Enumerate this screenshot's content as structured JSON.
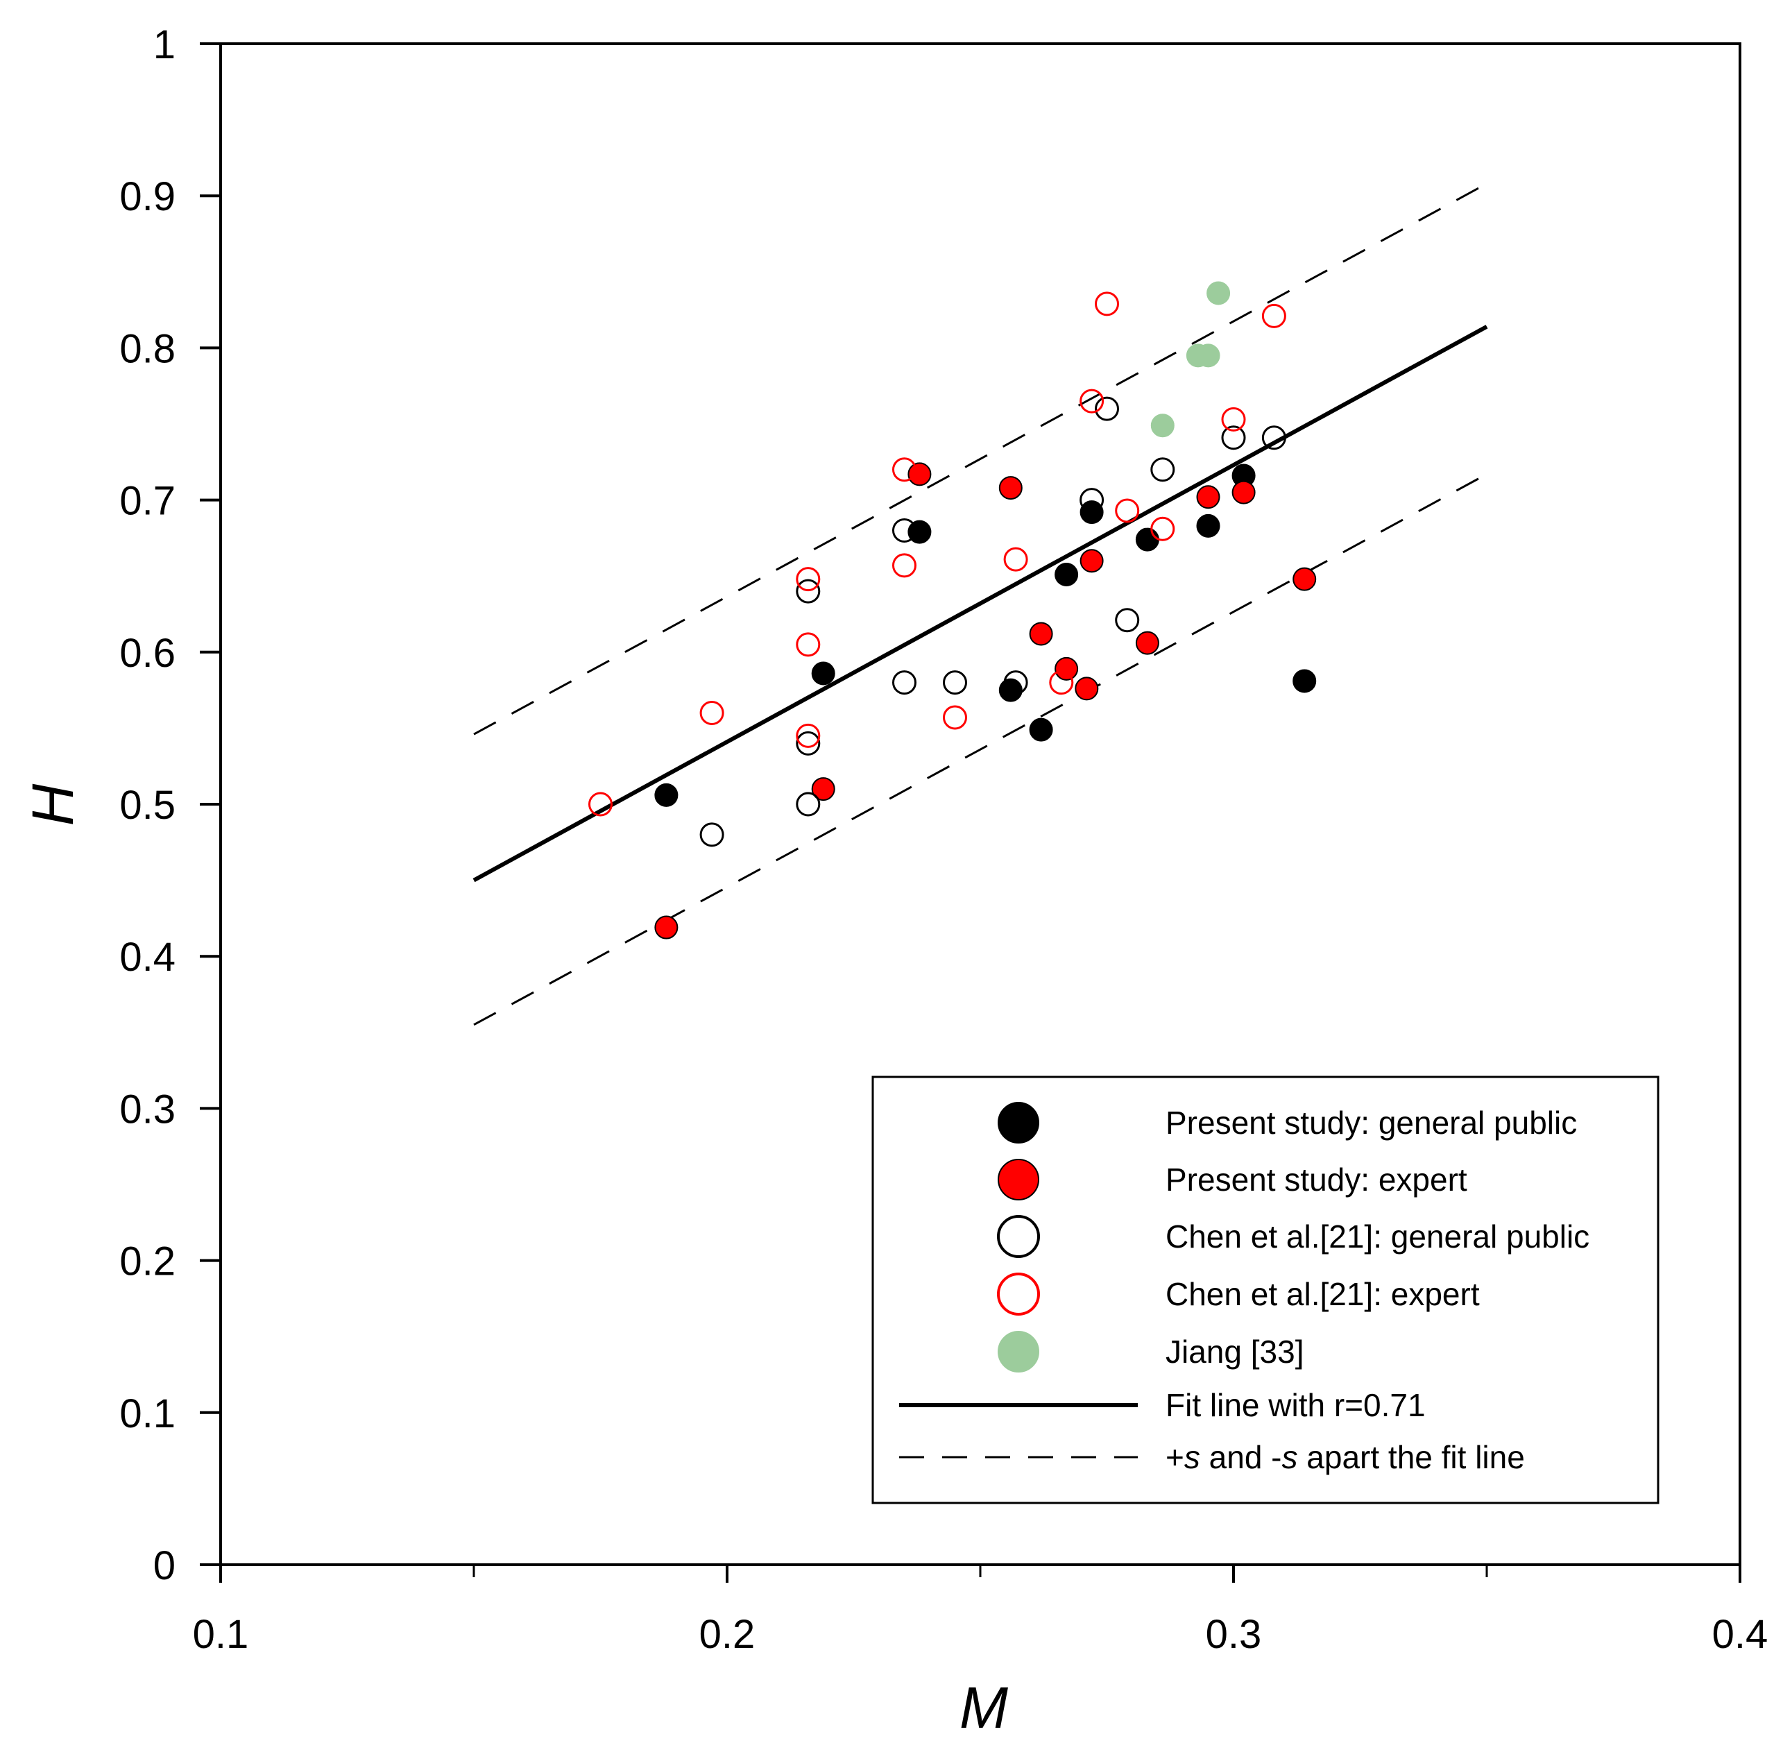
{
  "chart_data": {
    "type": "scatter",
    "title": "",
    "xlabel": "M",
    "ylabel": "H",
    "xlim": [
      0.1,
      0.4
    ],
    "ylim": [
      0,
      1
    ],
    "x_ticks": [
      0.1,
      0.2,
      0.3,
      0.4
    ],
    "x_tick_labels": [
      "0.1",
      "0.2",
      "0.3",
      "0.4"
    ],
    "x_minor_ticks": [
      0.15,
      0.25,
      0.35
    ],
    "y_ticks": [
      0,
      0.1,
      0.2,
      0.3,
      0.4,
      0.5,
      0.6,
      0.7,
      0.8,
      0.9,
      1
    ],
    "y_tick_labels": [
      "0",
      "0.1",
      "0.2",
      "0.3",
      "0.4",
      "0.5",
      "0.6",
      "0.7",
      "0.8",
      "0.9",
      "1"
    ],
    "grid": false,
    "legend_position": "bottom-right",
    "series": [
      {
        "name": "Present study: general public",
        "style": "filled",
        "fill": "#000000",
        "stroke": "#000000",
        "points": [
          [
            0.188,
            0.506
          ],
          [
            0.219,
            0.586
          ],
          [
            0.238,
            0.679
          ],
          [
            0.256,
            0.575
          ],
          [
            0.262,
            0.549
          ],
          [
            0.267,
            0.651
          ],
          [
            0.272,
            0.692
          ],
          [
            0.283,
            0.674
          ],
          [
            0.295,
            0.683
          ],
          [
            0.302,
            0.716
          ],
          [
            0.314,
            0.581
          ]
        ]
      },
      {
        "name": "Present study: expert",
        "style": "filled",
        "fill": "#ff0000",
        "stroke": "#000000",
        "points": [
          [
            0.188,
            0.419
          ],
          [
            0.219,
            0.51
          ],
          [
            0.238,
            0.717
          ],
          [
            0.256,
            0.708
          ],
          [
            0.262,
            0.612
          ],
          [
            0.267,
            0.589
          ],
          [
            0.271,
            0.576
          ],
          [
            0.272,
            0.66
          ],
          [
            0.283,
            0.606
          ],
          [
            0.295,
            0.702
          ],
          [
            0.302,
            0.705
          ],
          [
            0.314,
            0.648
          ]
        ]
      },
      {
        "name": "Chen et al.[21]: general public",
        "style": "hollow",
        "fill": "none",
        "stroke": "#000000",
        "points": [
          [
            0.197,
            0.48
          ],
          [
            0.216,
            0.5
          ],
          [
            0.216,
            0.54
          ],
          [
            0.216,
            0.64
          ],
          [
            0.235,
            0.58
          ],
          [
            0.235,
            0.68
          ],
          [
            0.245,
            0.58
          ],
          [
            0.257,
            0.58
          ],
          [
            0.272,
            0.7
          ],
          [
            0.275,
            0.76
          ],
          [
            0.279,
            0.621
          ],
          [
            0.286,
            0.72
          ],
          [
            0.3,
            0.741
          ],
          [
            0.308,
            0.741
          ]
        ]
      },
      {
        "name": "Chen et al.[21]: expert",
        "style": "hollow",
        "fill": "none",
        "stroke": "#ff0000",
        "points": [
          [
            0.175,
            0.5
          ],
          [
            0.197,
            0.56
          ],
          [
            0.216,
            0.545
          ],
          [
            0.216,
            0.605
          ],
          [
            0.216,
            0.648
          ],
          [
            0.235,
            0.657
          ],
          [
            0.235,
            0.72
          ],
          [
            0.245,
            0.557
          ],
          [
            0.257,
            0.661
          ],
          [
            0.266,
            0.58
          ],
          [
            0.272,
            0.765
          ],
          [
            0.275,
            0.829
          ],
          [
            0.279,
            0.693
          ],
          [
            0.286,
            0.681
          ],
          [
            0.3,
            0.753
          ],
          [
            0.308,
            0.821
          ]
        ]
      },
      {
        "name": "Jiang [33]",
        "style": "filled",
        "fill": "#9ccc9c",
        "stroke": "#9ccc9c",
        "points": [
          [
            0.286,
            0.749
          ],
          [
            0.293,
            0.795
          ],
          [
            0.295,
            0.795
          ],
          [
            0.297,
            0.836
          ]
        ]
      }
    ],
    "lines": [
      {
        "name": "Fit line with r=0.71",
        "style": "solid",
        "points": [
          [
            0.15,
            0.45
          ],
          [
            0.35,
            0.814
          ]
        ]
      },
      {
        "name": "+s apart the fit line",
        "style": "dashed",
        "points": [
          [
            0.15,
            0.546
          ],
          [
            0.35,
            0.908
          ]
        ]
      },
      {
        "name": "-s apart the fit line",
        "style": "dashed",
        "points": [
          [
            0.15,
            0.355
          ],
          [
            0.35,
            0.717
          ]
        ]
      }
    ],
    "legend": {
      "entries": [
        {
          "label": "Present study: general public",
          "marker": "filled",
          "fill": "#000000",
          "stroke": "#000000"
        },
        {
          "label": "Present study: expert",
          "marker": "filled",
          "fill": "#ff0000",
          "stroke": "#000000"
        },
        {
          "label": "Chen et al.[21]: general public",
          "marker": "hollow",
          "fill": "none",
          "stroke": "#000000"
        },
        {
          "label": "Chen et al.[21]: expert",
          "marker": "hollow",
          "fill": "none",
          "stroke": "#ff0000"
        },
        {
          "label": "Jiang [33]",
          "marker": "filled",
          "fill": "#9ccc9c",
          "stroke": "#9ccc9c"
        },
        {
          "label": "Fit line with r=0.71",
          "marker": "solid-line"
        },
        {
          "label_parts": [
            "+",
            "s",
            " and -",
            "s",
            " apart the fit line"
          ],
          "marker": "dashed-line"
        }
      ]
    }
  }
}
